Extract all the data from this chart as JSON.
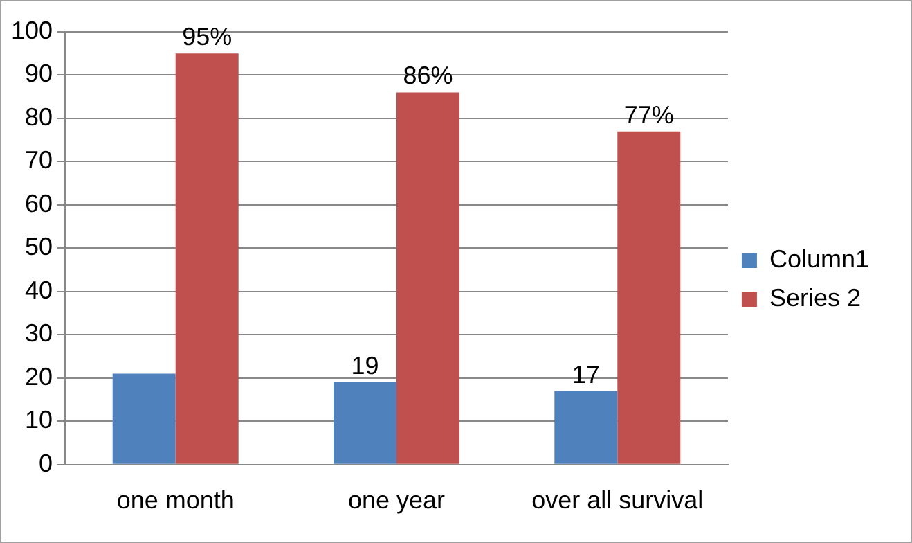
{
  "chart_data": {
    "type": "bar",
    "categories": [
      "one month",
      "one year",
      "over all survival"
    ],
    "series": [
      {
        "name": "Column1",
        "color": "#4f81bd",
        "values": [
          21,
          19,
          17
        ],
        "value_labels": [
          null,
          "19",
          "17"
        ]
      },
      {
        "name": "Series 2",
        "color": "#c0504d",
        "values": [
          95,
          86,
          77
        ],
        "value_labels": [
          "95%",
          "86%",
          "77%"
        ]
      }
    ],
    "ylim": [
      0,
      100
    ],
    "yticks": [
      0,
      10,
      20,
      30,
      40,
      50,
      60,
      70,
      80,
      90,
      100
    ],
    "grid": "y",
    "legend": "right"
  }
}
